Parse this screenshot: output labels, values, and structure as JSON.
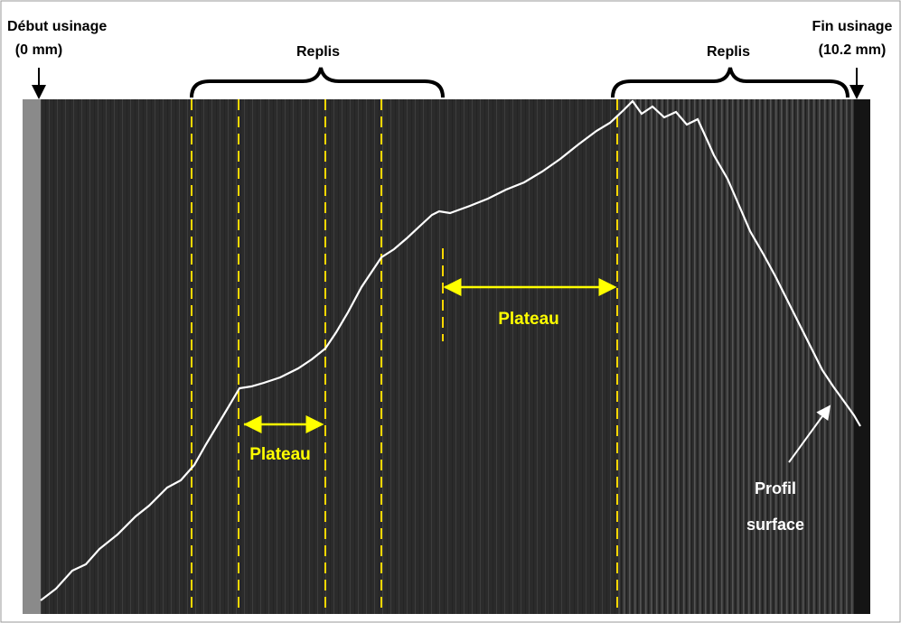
{
  "labels": {
    "start": {
      "title": "Début usinage",
      "position": "(0 mm)"
    },
    "end": {
      "title": "Fin usinage",
      "position": "(10.2 mm)"
    },
    "folds": [
      "Replis",
      "Replis"
    ],
    "plateaus": [
      "Plateau",
      "Plateau"
    ],
    "profile": [
      "Profil",
      "surface"
    ]
  }
}
